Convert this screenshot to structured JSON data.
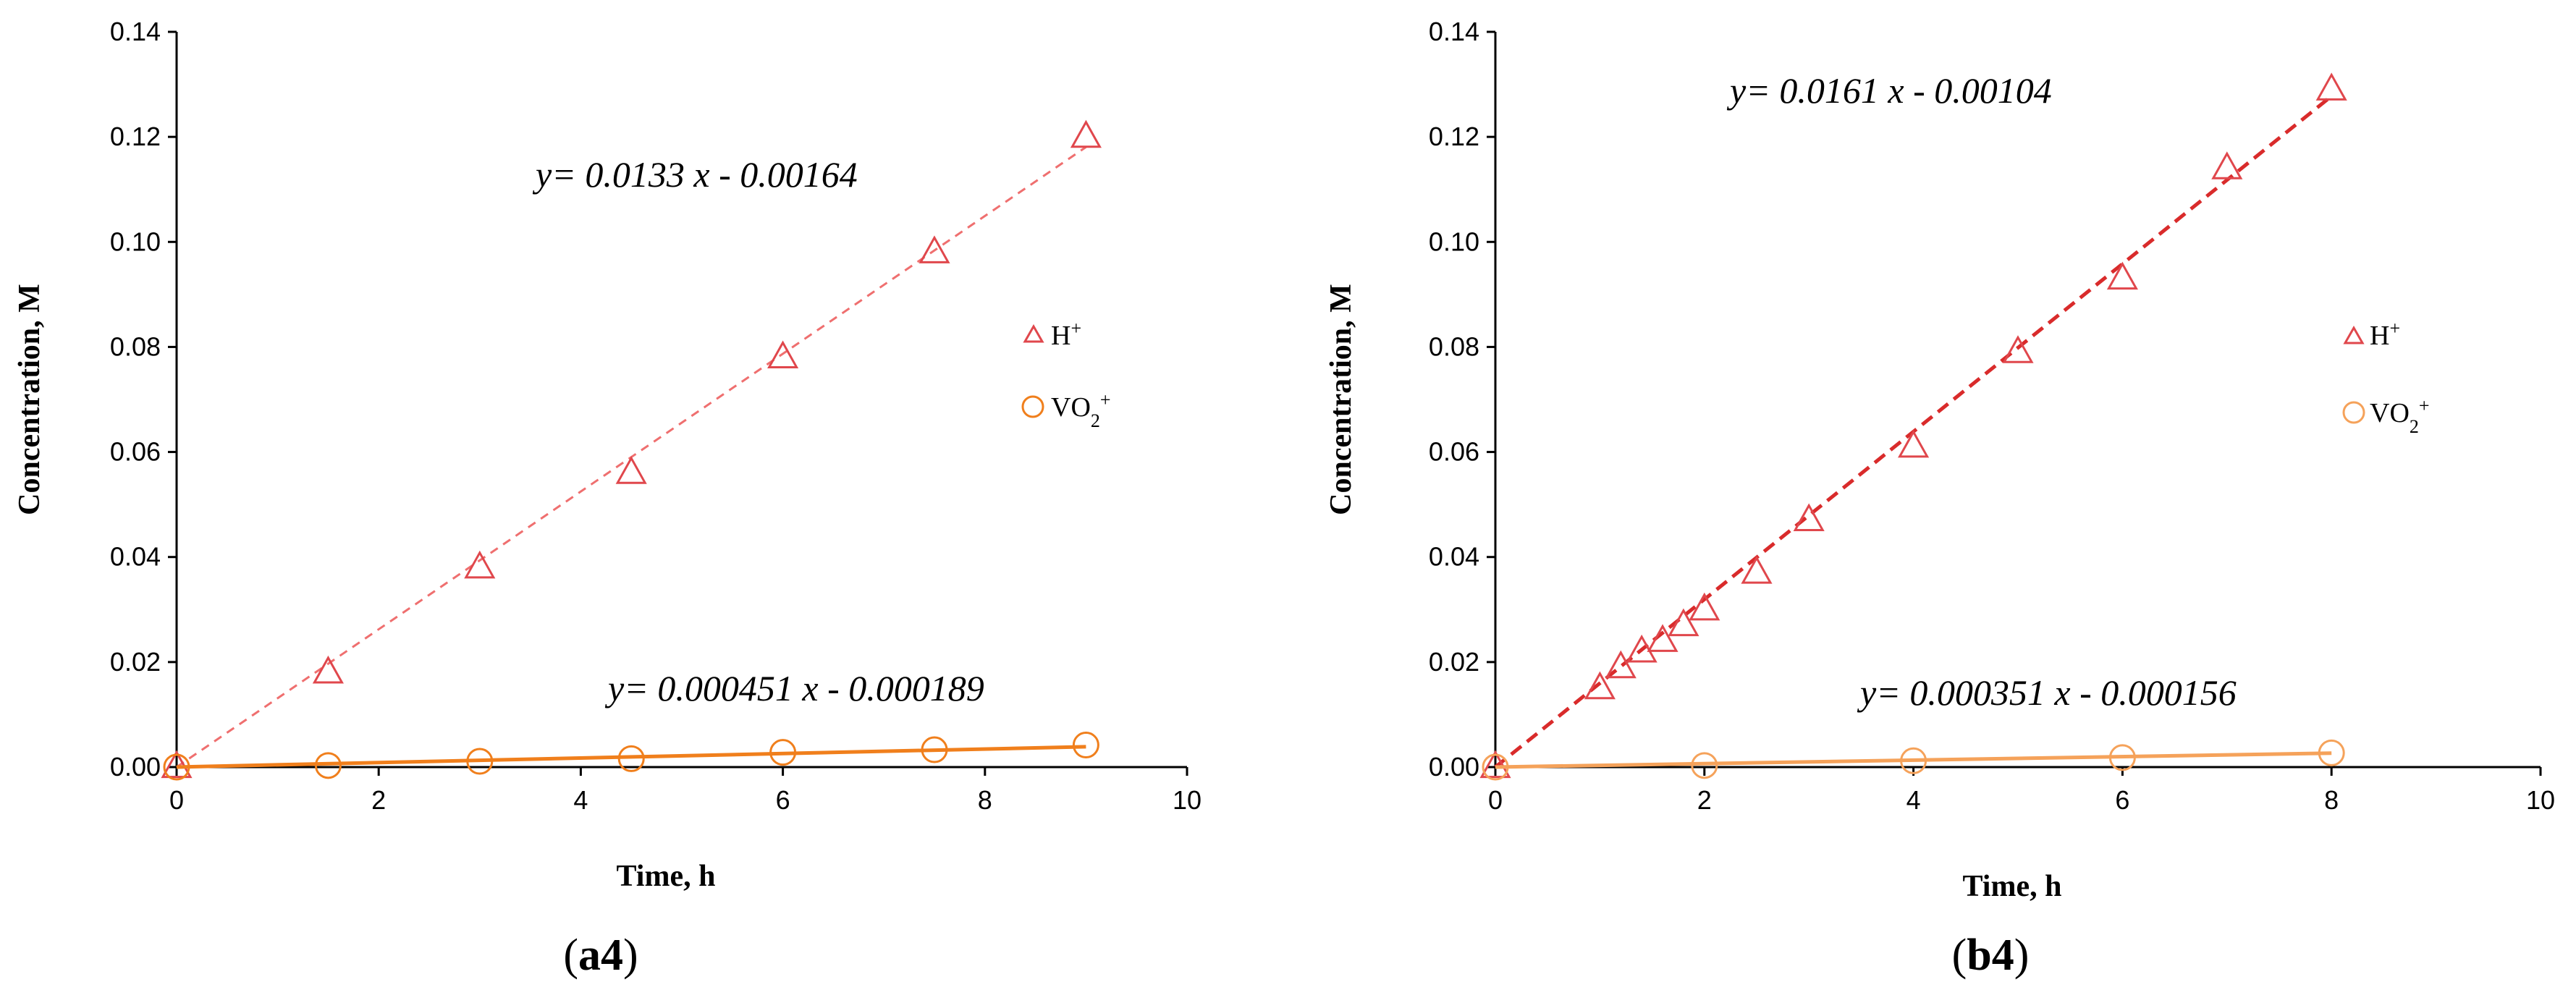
{
  "chart_data": [
    {
      "type": "scatter",
      "panel_label_bold": "a4",
      "panel_label_open": "(",
      "panel_label_close": ")",
      "xlabel": "Time, h",
      "ylabel": "Concentration, M",
      "xlim": [
        0,
        10
      ],
      "ylim": [
        0,
        0.14
      ],
      "xticks": [
        0,
        2,
        4,
        6,
        8,
        10
      ],
      "yticks": [
        0.0,
        0.02,
        0.04,
        0.06,
        0.08,
        0.1,
        0.12,
        0.14
      ],
      "series": [
        {
          "name": "H+",
          "legend_base": "H",
          "legend_super": "+",
          "legend_sub": "",
          "marker": "triangle",
          "color": "#e0474c",
          "x": [
            0,
            1.5,
            3,
            4.5,
            6,
            7.5,
            9
          ],
          "y": [
            0.0,
            0.018,
            0.038,
            0.056,
            0.078,
            0.098,
            0.12
          ],
          "fit": {
            "slope": 0.0133,
            "intercept": -0.00164,
            "style": "dashed",
            "line_color": "#ef6f6f",
            "equation": "y= 0.0133 x - 0.00164"
          }
        },
        {
          "name": "VO2+",
          "legend_base": "VO",
          "legend_sub": "2",
          "legend_super": "+",
          "marker": "circle",
          "color": "#f07f1c",
          "x": [
            0,
            1.5,
            3,
            4.5,
            6,
            7.5,
            9
          ],
          "y": [
            0.0,
            0.0003,
            0.0011,
            0.0016,
            0.0028,
            0.0033,
            0.0042
          ],
          "fit": {
            "slope": 0.000451,
            "intercept": -0.000189,
            "style": "solid",
            "line_color": "#f07f1c",
            "equation": "y= 0.000451 x - 0.000189"
          }
        }
      ]
    },
    {
      "type": "scatter",
      "panel_label_bold": "b4",
      "panel_label_open": "(",
      "panel_label_close": ")",
      "xlabel": "Time, h",
      "ylabel": "Concentration, M",
      "xlim": [
        0,
        10
      ],
      "ylim": [
        0,
        0.14
      ],
      "xticks": [
        0,
        2,
        4,
        6,
        8,
        10
      ],
      "yticks": [
        0.0,
        0.02,
        0.04,
        0.06,
        0.08,
        0.1,
        0.12,
        0.14
      ],
      "series": [
        {
          "name": "H+",
          "legend_base": "H",
          "legend_super": "+",
          "legend_sub": "",
          "marker": "triangle",
          "color": "#e0474c",
          "x": [
            0,
            1,
            1.2,
            1.4,
            1.6,
            1.8,
            2,
            2.5,
            3,
            4,
            5,
            6,
            7,
            8
          ],
          "y": [
            0.0,
            0.015,
            0.019,
            0.022,
            0.024,
            0.027,
            0.03,
            0.037,
            0.047,
            0.061,
            0.079,
            0.093,
            0.114,
            0.129
          ],
          "fit": {
            "slope": 0.0161,
            "intercept": -0.00104,
            "style": "dashed",
            "line_color": "#d92b2b",
            "equation": "y= 0.0161 x - 0.00104"
          }
        },
        {
          "name": "VO2+",
          "legend_base": "VO",
          "legend_sub": "2",
          "legend_super": "+",
          "marker": "circle",
          "color": "#f5a25a",
          "x": [
            0,
            2,
            4,
            6,
            8
          ],
          "y": [
            0.0,
            0.0003,
            0.0012,
            0.0018,
            0.0027
          ],
          "fit": {
            "slope": 0.000351,
            "intercept": -0.000156,
            "style": "solid",
            "line_color": "#f5a25a",
            "equation": "y= 0.000351 x - 0.000156"
          }
        }
      ]
    }
  ]
}
